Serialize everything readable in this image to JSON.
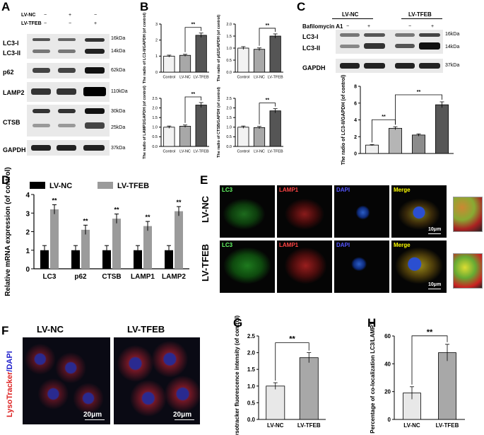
{
  "panels": {
    "A": {
      "label": "A",
      "conditions": [
        {
          "name": "LV-NC",
          "marks": [
            "−",
            "+",
            "−"
          ]
        },
        {
          "name": "LV-TFEB",
          "marks": [
            "−",
            "−",
            "+"
          ]
        }
      ],
      "blots": [
        "LC3-I",
        "LC3-II",
        "p62",
        "LAMP2",
        "CTSB",
        "GAPDH"
      ],
      "markers": [
        "16kDa",
        "14kDa",
        "62kDa",
        "110kDa",
        "30kDa",
        "25kDa",
        "37kDa"
      ]
    },
    "B": {
      "label": "B",
      "charts": [
        {
          "ylabel": "The  radio of LC3-II/GAPDH (of control)",
          "values": [
            1.0,
            1.05,
            2.3
          ],
          "ymax": 3,
          "ticks": [
            "0",
            "1",
            "2",
            "3"
          ],
          "sig": "**"
        },
        {
          "ylabel": "The  radio of p62/GAPDH (of control)",
          "values": [
            1.0,
            0.95,
            1.5
          ],
          "ymax": 2.0,
          "ticks": [
            "0.0",
            "0.5",
            "1.0",
            "1.5",
            "2.0"
          ],
          "sig": "**"
        },
        {
          "ylabel": "The  radio of LAMP2/GAPDH (of control)",
          "values": [
            1.0,
            1.05,
            2.15
          ],
          "ymax": 2.5,
          "ticks": [
            "0.0",
            "0.5",
            "1.0",
            "1.5",
            "2.0",
            "2.5"
          ],
          "sig": "**"
        },
        {
          "ylabel": "The  radio of CTSB/GAPDH (of control)",
          "values": [
            1.0,
            0.98,
            1.85
          ],
          "ymax": 2.5,
          "ticks": [
            "0.0",
            "0.5",
            "1.0",
            "1.5",
            "2.0",
            "2.5"
          ],
          "sig": "**"
        }
      ],
      "categories": [
        "Control",
        "LV-NC",
        "LV-TFEB"
      ]
    },
    "C": {
      "label": "C",
      "groups": [
        "LV-NC",
        "LV-TFEB"
      ],
      "treatment": "Bafilomycin A1",
      "marks": [
        "−",
        "+",
        "−",
        "+"
      ],
      "blots": [
        "LC3-I",
        "LC3-II",
        "GAPDH"
      ],
      "markers": [
        "16kDa",
        "14kDa",
        "37kDa"
      ],
      "ylabel": "The  radio of LC3-II/GAPDH (of control)",
      "ticks": [
        "0",
        "2",
        "4",
        "6",
        "8"
      ],
      "values": [
        1.0,
        3.0,
        2.2,
        5.8
      ],
      "sig": [
        "**",
        "**"
      ]
    },
    "D": {
      "label": "D",
      "legend": [
        "LV-NC",
        "LV-TFEB"
      ],
      "ylabel": "Relative mRNA expression (of control)",
      "ticks": [
        "0",
        "1",
        "2",
        "3",
        "4"
      ],
      "categories": [
        "LC3",
        "p62",
        "CTSB",
        "LAMP1",
        "LAMP2"
      ],
      "nc": [
        1.0,
        1.0,
        1.0,
        1.0,
        1.0
      ],
      "tfeb": [
        3.2,
        2.1,
        2.7,
        2.3,
        3.1
      ],
      "sig": "**"
    },
    "E": {
      "label": "E",
      "rows": [
        "LV-NC",
        "LV-TFEB"
      ],
      "channels": [
        "LC3",
        "LAMP1",
        "DAPI",
        "Merge"
      ],
      "scale": "10μm"
    },
    "F": {
      "label": "F",
      "columns": [
        "LV-NC",
        "LV-TFEB"
      ],
      "ylabel_red": "LysoTracker",
      "ylabel_blue": "/DAPI",
      "scale": "20μm"
    },
    "G": {
      "label": "G",
      "ylabel": "Lysotracker fluorescence intensity (of control)",
      "ticks": [
        "0.0",
        "0.5",
        "1.0",
        "1.5",
        "2.0",
        "2.5"
      ],
      "categories": [
        "LV-NC",
        "LV-TFEB"
      ],
      "values": [
        1.0,
        1.85
      ],
      "sig": "**"
    },
    "H": {
      "label": "H",
      "ylabel": "Percentage of co-localization LC3/LAMP1",
      "ticks": [
        "0",
        "20",
        "40",
        "60"
      ],
      "categories": [
        "LV-NC",
        "LV-TFEB"
      ],
      "values": [
        19,
        48
      ],
      "sig": "**"
    }
  },
  "chart_data": [
    {
      "type": "bar",
      "ylabel": "The  radio of LC3-II/GAPDH (of control)",
      "categories": [
        "Control",
        "LV-NC",
        "LV-TFEB"
      ],
      "values": [
        1.0,
        1.05,
        2.3
      ],
      "ylim": [
        0,
        3
      ]
    },
    {
      "type": "bar",
      "ylabel": "The  radio of p62/GAPDH (of control)",
      "categories": [
        "Control",
        "LV-NC",
        "LV-TFEB"
      ],
      "values": [
        1.0,
        0.95,
        1.5
      ],
      "ylim": [
        0,
        2
      ]
    },
    {
      "type": "bar",
      "ylabel": "The  radio of LAMP2/GAPDH (of control)",
      "categories": [
        "Control",
        "LV-NC",
        "LV-TFEB"
      ],
      "values": [
        1.0,
        1.05,
        2.15
      ],
      "ylim": [
        0,
        2.5
      ]
    },
    {
      "type": "bar",
      "ylabel": "The  radio of CTSB/GAPDH (of control)",
      "categories": [
        "Control",
        "LV-NC",
        "LV-TFEB"
      ],
      "values": [
        1.0,
        0.98,
        1.85
      ],
      "ylim": [
        0,
        2.5
      ]
    },
    {
      "type": "bar",
      "ylabel": "The  radio of LC3-II/GAPDH (of control)",
      "values": [
        1.0,
        3.0,
        2.2,
        5.8
      ],
      "ylim": [
        0,
        8
      ]
    },
    {
      "type": "bar",
      "ylabel": "Relative mRNA expression (of control)",
      "categories": [
        "LC3",
        "p62",
        "CTSB",
        "LAMP1",
        "LAMP2"
      ],
      "series": [
        {
          "name": "LV-NC",
          "values": [
            1.0,
            1.0,
            1.0,
            1.0,
            1.0
          ]
        },
        {
          "name": "LV-TFEB",
          "values": [
            3.2,
            2.1,
            2.7,
            2.3,
            3.1
          ]
        }
      ],
      "ylim": [
        0,
        4
      ]
    },
    {
      "type": "bar",
      "ylabel": "Lysotracker fluorescence intensity (of control)",
      "categories": [
        "LV-NC",
        "LV-TFEB"
      ],
      "values": [
        1.0,
        1.85
      ],
      "ylim": [
        0,
        2.5
      ]
    },
    {
      "type": "bar",
      "ylabel": "Percentage of co-localization LC3/LAMP1",
      "categories": [
        "LV-NC",
        "LV-TFEB"
      ],
      "values": [
        19,
        48
      ],
      "ylim": [
        0,
        60
      ]
    }
  ]
}
